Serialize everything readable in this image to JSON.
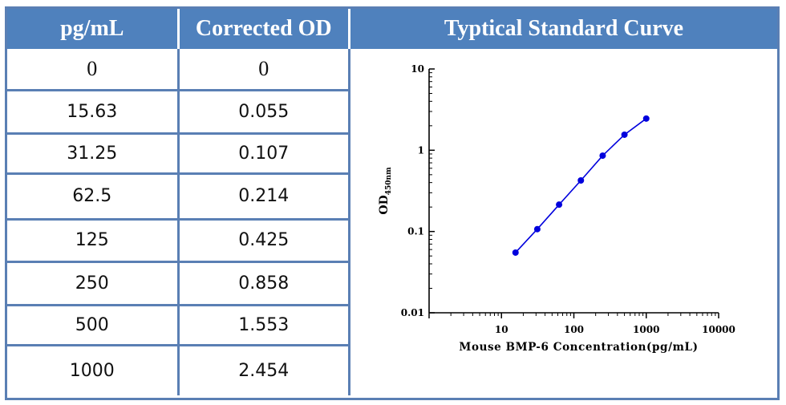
{
  "table": {
    "headers": [
      "pg/mL",
      "Corrected OD",
      "Typtical Standard Curve"
    ],
    "rows": [
      [
        "0",
        "0"
      ],
      [
        "15.63",
        "0.055"
      ],
      [
        "31.25",
        "0.107"
      ],
      [
        "62.5",
        "0.214"
      ],
      [
        "125",
        "0.425"
      ],
      [
        "250",
        "0.858"
      ],
      [
        "500",
        "1.553"
      ],
      [
        "1000",
        "2.454"
      ]
    ]
  },
  "chart_data": {
    "type": "line",
    "xlabel": "Mouse BMP-6 Concentration(pg/mL)",
    "ylabel": "OD",
    "ylabel_sub": "450nm",
    "xscale": "log",
    "yscale": "log",
    "xlim": [
      1,
      10000
    ],
    "ylim": [
      0.01,
      10
    ],
    "x_ticks": [
      "10",
      "100",
      "1000",
      "10000"
    ],
    "y_ticks": [
      "0.01",
      "0.1",
      "1",
      "10"
    ],
    "series": [
      {
        "x": [
          15.63,
          31.25,
          62.5,
          125,
          250,
          500,
          1000
        ],
        "y": [
          0.055,
          0.107,
          0.214,
          0.425,
          0.858,
          1.553,
          2.454
        ],
        "color": "#0000dd"
      }
    ]
  }
}
